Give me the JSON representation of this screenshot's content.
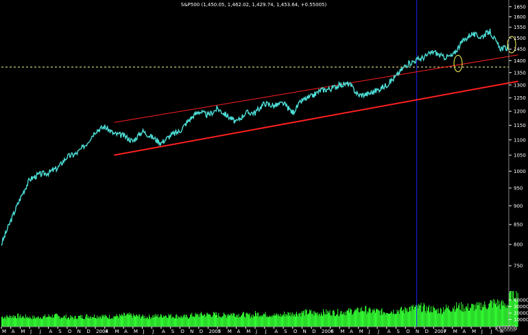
{
  "chart_data": {
    "type": "line",
    "title": "S&P500 (1,450.05, 1,462.02, 1,429.74, 1,453.64, +0.55005)",
    "price_axis": {
      "scale": "log",
      "ylim": [
        700,
        1670
      ],
      "ticks": [
        1650,
        1600,
        1550,
        1500,
        1450,
        1400,
        1350,
        1300,
        1250,
        1200,
        1150,
        1100,
        1050,
        1000,
        950,
        900,
        850,
        800,
        750
      ]
    },
    "volume_axis": {
      "ticks": [
        "40000",
        "30000",
        "20000",
        "10000"
      ],
      "multiplier_label": "x 100000"
    },
    "x_month_labels": [
      "M",
      "A",
      "M",
      "J",
      "J",
      "A",
      "S",
      "O",
      "N",
      "D",
      "2004",
      "F",
      "M",
      "A",
      "M",
      "J",
      "J",
      "A",
      "S",
      "O",
      "N",
      "D",
      "2005",
      "F",
      "M",
      "A",
      "M",
      "J",
      "J",
      "A",
      "S",
      "O",
      "N",
      "D",
      "2006",
      "F",
      "M",
      "A",
      "M",
      "J",
      "J",
      "A",
      "S",
      "O",
      "N",
      "D",
      "2007",
      "F",
      "M",
      "A",
      "M",
      "J",
      "J",
      "A"
    ],
    "series": [
      {
        "name": "S&P500",
        "color": "#4ee0d8",
        "points": [
          [
            0,
            800
          ],
          [
            1,
            860
          ],
          [
            2,
            920
          ],
          [
            3,
            975
          ],
          [
            4,
            990
          ],
          [
            5,
            995
          ],
          [
            6,
            1010
          ],
          [
            7,
            1045
          ],
          [
            8,
            1055
          ],
          [
            9,
            1085
          ],
          [
            10,
            1130
          ],
          [
            11,
            1145
          ],
          [
            12,
            1120
          ],
          [
            13,
            1115
          ],
          [
            14,
            1095
          ],
          [
            15,
            1130
          ],
          [
            16,
            1110
          ],
          [
            17,
            1090
          ],
          [
            18,
            1115
          ],
          [
            19,
            1130
          ],
          [
            20,
            1170
          ],
          [
            21,
            1200
          ],
          [
            22,
            1185
          ],
          [
            23,
            1210
          ],
          [
            24,
            1185
          ],
          [
            25,
            1160
          ],
          [
            26,
            1195
          ],
          [
            27,
            1195
          ],
          [
            28,
            1230
          ],
          [
            29,
            1220
          ],
          [
            30,
            1230
          ],
          [
            31,
            1195
          ],
          [
            32,
            1240
          ],
          [
            33,
            1255
          ],
          [
            34,
            1280
          ],
          [
            35,
            1285
          ],
          [
            36,
            1300
          ],
          [
            37,
            1305
          ],
          [
            38,
            1260
          ],
          [
            39,
            1265
          ],
          [
            40,
            1280
          ],
          [
            41,
            1300
          ],
          [
            42,
            1335
          ],
          [
            43,
            1380
          ],
          [
            44,
            1400
          ],
          [
            45,
            1415
          ],
          [
            46,
            1440
          ],
          [
            47,
            1415
          ],
          [
            48,
            1420
          ],
          [
            49,
            1480
          ],
          [
            50,
            1520
          ],
          [
            51,
            1505
          ],
          [
            52,
            1530
          ],
          [
            53,
            1455
          ],
          [
            54,
            1453.64
          ]
        ]
      }
    ],
    "trendlines": [
      {
        "color": "#ff2020",
        "from": [
          12,
          1050
        ],
        "to": [
          55,
          1315
        ]
      },
      {
        "color": "#ff2020",
        "from": [
          12,
          1160
        ],
        "to": [
          55,
          1425
        ]
      }
    ],
    "reference_lines": [
      {
        "orientation": "horizontal",
        "value": 1373,
        "color": "#ffff99",
        "style": "dashed"
      },
      {
        "orientation": "vertical",
        "at_month_index": 44.2,
        "color": "#2020ff",
        "style": "solid"
      }
    ],
    "annotations": [
      {
        "shape": "ellipse",
        "color": "#ffff55",
        "at": [
          48.6,
          1388
        ]
      },
      {
        "shape": "ellipse",
        "color": "#ffff55",
        "at": [
          54.3,
          1470
        ]
      }
    ],
    "volume": [
      {
        "color": "#33ff33",
        "values_x1000": [
          14,
          15,
          14,
          13,
          14,
          15,
          14,
          13,
          14,
          15,
          15,
          14,
          15,
          16,
          15,
          14,
          15,
          16,
          15,
          14,
          16,
          17,
          17,
          16,
          18,
          17,
          16,
          18,
          17,
          16,
          18,
          19,
          20,
          19,
          20,
          20,
          21,
          22,
          24,
          22,
          21,
          22,
          23,
          26,
          27,
          25,
          23,
          26,
          28,
          27,
          28,
          30,
          33,
          31,
          48
        ]
      }
    ]
  }
}
